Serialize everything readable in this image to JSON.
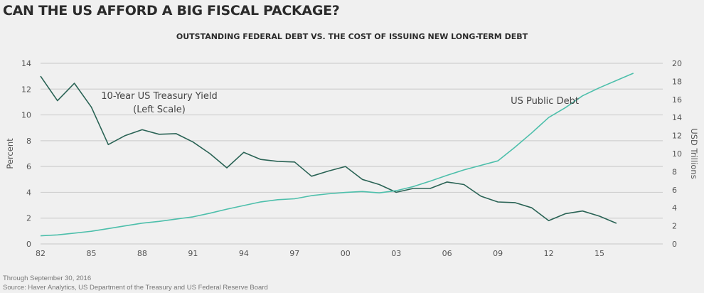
{
  "chart_data": {
    "type": "line",
    "title": "CAN THE US AFFORD A BIG FISCAL PACKAGE?",
    "subtitle": "OUTSTANDING FEDERAL DEBT VS. THE COST OF ISSUING NEW LONG-TERM DEBT",
    "xlabel": "",
    "ylabel_left": "Percent",
    "ylabel_right": "USD Trillions",
    "ylim_left": [
      0,
      14
    ],
    "ylim_right": [
      0,
      20
    ],
    "xlim": [
      1982,
      2017
    ],
    "grid": true,
    "x_ticks": [
      1982,
      1985,
      1988,
      1991,
      1994,
      1997,
      2000,
      2003,
      2006,
      2009,
      2012,
      2015
    ],
    "x_tick_labels": [
      "82",
      "85",
      "88",
      "91",
      "94",
      "97",
      "00",
      "03",
      "06",
      "09",
      "12",
      "15"
    ],
    "y_left_ticks": [
      "0",
      "2",
      "4",
      "6",
      "8",
      "10",
      "12",
      "14"
    ],
    "y_right_ticks": [
      "0",
      "2",
      "4",
      "6",
      "8",
      "10",
      "12",
      "14",
      "16",
      "18",
      "20"
    ],
    "series": [
      {
        "name": "10-Year US Treasury Yield",
        "axis": "left",
        "color": "#2a6355",
        "annotation": [
          "10-Year US Treasury Yield",
          "(Left Scale)"
        ],
        "x": [
          1982,
          1983,
          1984,
          1985,
          1986,
          1987,
          1988,
          1989,
          1990,
          1991,
          1992,
          1993,
          1994,
          1995,
          1996,
          1997,
          1998,
          1999,
          2000,
          2001,
          2002,
          2003,
          2004,
          2005,
          2006,
          2007,
          2008,
          2009,
          2010,
          2011,
          2012,
          2013,
          2014,
          2015,
          2016
        ],
        "values": [
          13.0,
          11.1,
          12.45,
          10.6,
          7.7,
          8.4,
          8.85,
          8.5,
          8.55,
          7.9,
          7.0,
          5.9,
          7.1,
          6.55,
          6.4,
          6.35,
          5.25,
          5.65,
          6.0,
          5.0,
          4.6,
          4.0,
          4.3,
          4.3,
          4.8,
          4.6,
          3.7,
          3.25,
          3.2,
          2.8,
          1.8,
          2.35,
          2.55,
          2.15,
          1.6
        ]
      },
      {
        "name": "US Public Debt",
        "axis": "right",
        "color": "#4dbfab",
        "annotation": [
          "US Public Debt"
        ],
        "x": [
          1982,
          1983,
          1984,
          1985,
          1986,
          1987,
          1988,
          1989,
          1990,
          1991,
          1992,
          1993,
          1994,
          1995,
          1996,
          1997,
          1998,
          1999,
          2000,
          2001,
          2002,
          2003,
          2004,
          2005,
          2006,
          2007,
          2008,
          2009,
          2010,
          2011,
          2012,
          2013,
          2014,
          2015,
          2016,
          2017
        ],
        "values": [
          0.9,
          1.0,
          1.2,
          1.4,
          1.7,
          2.0,
          2.3,
          2.5,
          2.75,
          3.0,
          3.4,
          3.85,
          4.25,
          4.65,
          4.9,
          5.0,
          5.35,
          5.55,
          5.7,
          5.8,
          5.65,
          5.9,
          6.35,
          6.95,
          7.6,
          8.2,
          8.7,
          9.2,
          10.7,
          12.3,
          14.0,
          15.1,
          16.4,
          17.3,
          18.1,
          18.9
        ]
      }
    ],
    "legend": "inline-annotations"
  },
  "footnotes": {
    "through": "Through September 30, 2016",
    "source": "Source: Haver Analytics, US Department of the Treasury and US Federal Reserve Board"
  }
}
